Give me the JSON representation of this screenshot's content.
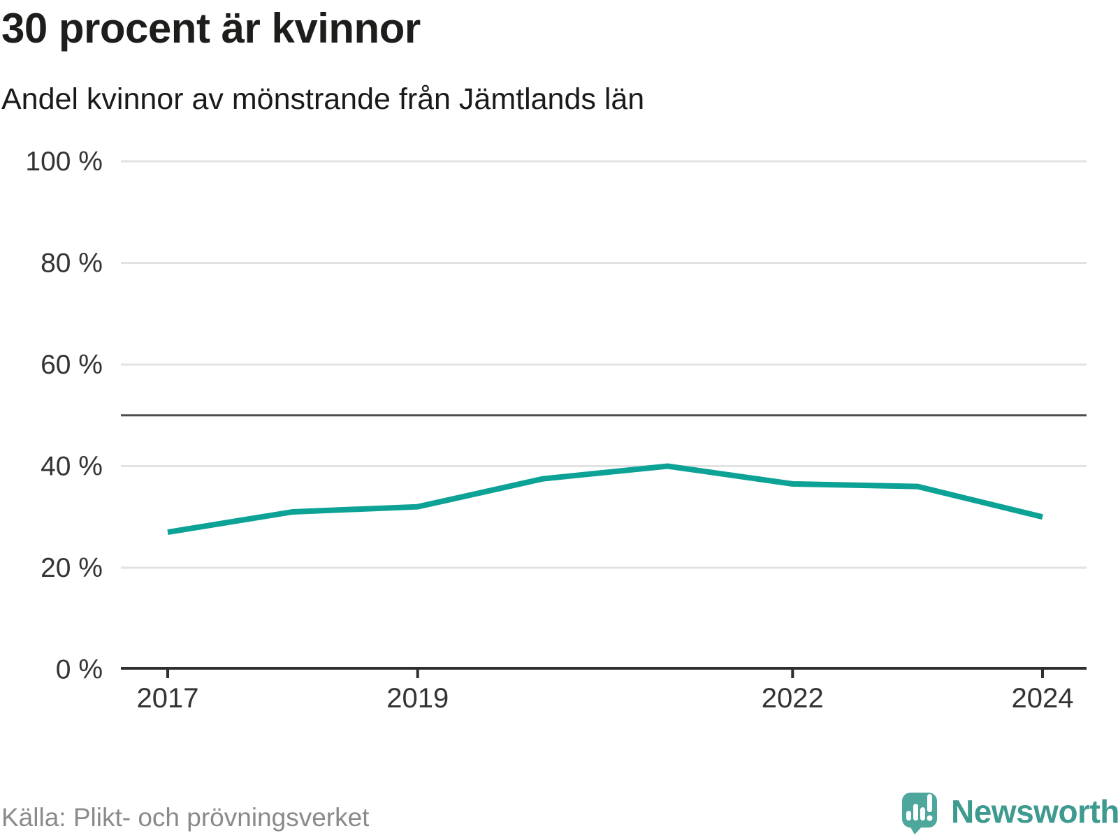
{
  "header": {
    "title": "30 procent är kvinnor",
    "subtitle": "Andel kvinnor av mönstrande från Jämtlands län"
  },
  "footer": {
    "source": "Källa: Plikt- och prövningsverket",
    "brand": "Newsworthy"
  },
  "colors": {
    "line": "#0ca296",
    "reference_line": "#4d4d4d",
    "gridline": "#e2e2e2",
    "axis": "#2f2f2f",
    "axis_text": "#333333",
    "title_text": "#1d1d1b",
    "source_text": "#8a8a8a",
    "brand_teal": "#3e998f",
    "logo_bubble": "#4da79c"
  },
  "chart_data": {
    "type": "line",
    "title": "30 procent är kvinnor",
    "subtitle": "Andel kvinnor av mönstrande från Jämtlands län",
    "x": [
      2017,
      2018,
      2019,
      2020,
      2021,
      2022,
      2023,
      2024
    ],
    "series": [
      {
        "name": "Andel kvinnor av mönstrande, Jämtlands län",
        "values": [
          27,
          31,
          32,
          37.5,
          40,
          36.5,
          36,
          30
        ]
      }
    ],
    "unit": "%",
    "ylim": [
      0,
      100
    ],
    "yticks": [
      0,
      20,
      40,
      60,
      80,
      100
    ],
    "ytick_labels": [
      "0 %",
      "20 %",
      "40 %",
      "60 %",
      "80 %",
      "100 %"
    ],
    "xticks": [
      2017,
      2019,
      2022,
      2024
    ],
    "reference_line": 50,
    "grid": "horizontal",
    "legend": "none",
    "source": "Källa: Plikt- och prövningsverket"
  }
}
